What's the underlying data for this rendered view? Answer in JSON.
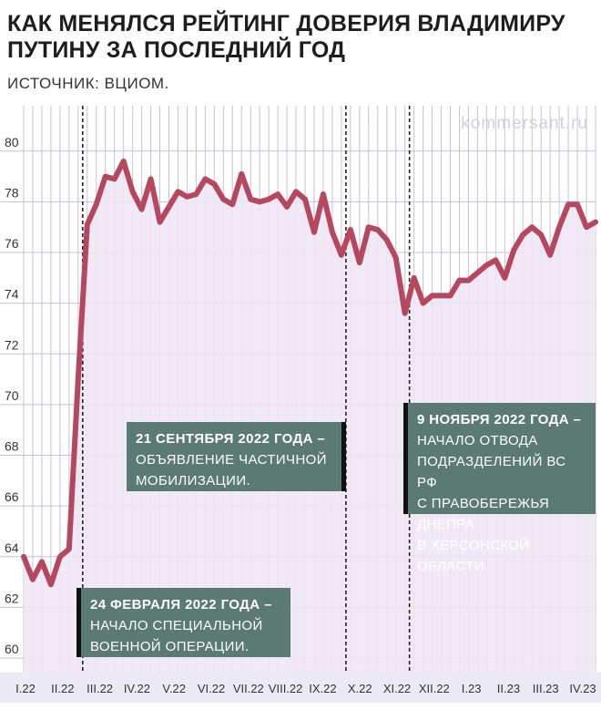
{
  "header": {
    "title": "КАК МЕНЯЛСЯ РЕЙТИНГ ДОВЕРИЯ ВЛАДИМИРУ ПУТИНУ ЗА ПОСЛЕДНИЙ ГОД",
    "source": "ИСТОЧНИК: ВЦИОМ.",
    "watermark": "kommersant.ru"
  },
  "colors": {
    "line": "#b5475f",
    "area": "#eee6f5",
    "grid": "#c9c0d3",
    "panel": "#5b7a73",
    "axis_band": "#ebe9f3"
  },
  "callouts": [
    {
      "date": "24 ФЕВРАЛЯ 2022 ГОДА –",
      "text1": "НАЧАЛО СПЕЦИАЛЬНОЙ",
      "text2": "ВОЕННОЙ ОПЕРАЦИИ.",
      "text3": ""
    },
    {
      "date": "21 СЕНТЯБРЯ 2022 ГОДА –",
      "text1": "ОБЪЯВЛЕНИЕ ЧАСТИЧНОЙ",
      "text2": "МОБИЛИЗАЦИИ.",
      "text3": ""
    },
    {
      "date": "9 НОЯБРЯ 2022 ГОДА –",
      "text1": "НАЧАЛО ОТВОДА",
      "text2": "ПОДРАЗДЕЛЕНИЙ ВС РФ",
      "text3": "С ПРАВОБЕРЕЖЬЯ ДНЕПРА",
      "text4": "В ХЕРСОНСКОЙ ОБЛАСТИ."
    }
  ],
  "chart_data": {
    "type": "line",
    "title": "КАК МЕНЯЛСЯ РЕЙТИНГ ДОВЕРИЯ ВЛАДИМИРУ ПУТИНУ ЗА ПОСЛЕДНИЙ ГОД",
    "ylim": [
      60,
      81
    ],
    "yticks": [
      60,
      62,
      64,
      66,
      68,
      70,
      72,
      74,
      76,
      78,
      80
    ],
    "x_tick_labels": [
      "I.22",
      "II.22",
      "III.22",
      "IV.22",
      "V.22",
      "VI.22",
      "VII.22",
      "VIII.22",
      "IX.22",
      "X.22",
      "XI.22",
      "XII.22",
      "I.23",
      "II.23",
      "III.23",
      "IV.23"
    ],
    "event_marker_indices": [
      6.5,
      35.5,
      42.5
    ],
    "grid": true,
    "series": [
      {
        "values": [
          64.0,
          63.1,
          63.8,
          62.9,
          64.0,
          64.3,
          71.0,
          77.1,
          77.9,
          79.0,
          78.9,
          79.6,
          78.4,
          77.7,
          78.9,
          77.2,
          77.8,
          78.4,
          78.2,
          78.3,
          78.9,
          78.7,
          78.1,
          77.9,
          79.1,
          78.1,
          78.0,
          78.1,
          78.3,
          77.8,
          78.4,
          78.1,
          76.8,
          78.3,
          76.8,
          75.9,
          76.9,
          75.6,
          77.0,
          76.9,
          76.5,
          75.8,
          73.6,
          75.0,
          74.0,
          74.3,
          74.3,
          74.3,
          74.9,
          74.9,
          75.2,
          75.5,
          75.7,
          75.0,
          76.1,
          76.7,
          77.0,
          76.7,
          75.9,
          77.0,
          77.9,
          77.9,
          77.0,
          77.2
        ]
      }
    ]
  }
}
